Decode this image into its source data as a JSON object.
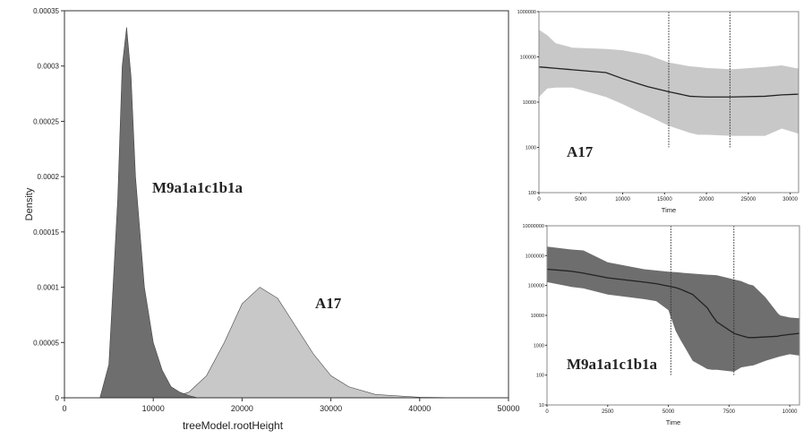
{
  "chart_data": [
    {
      "type": "area",
      "id": "main",
      "xlabel": "treeModel.rootHeight",
      "ylabel": "Density",
      "xlim": [
        0,
        50000
      ],
      "ylim": [
        0,
        0.00035
      ],
      "xticks": [
        "0",
        "10000",
        "20000",
        "30000",
        "40000",
        "50000"
      ],
      "yticks": [
        "0",
        "0.00005",
        "0.0001",
        "0.00015",
        "0.0002",
        "0.00025",
        "0.0003",
        "0.00035"
      ],
      "series": [
        {
          "name": "A17",
          "color": "#c8c8c8",
          "x": [
            12000,
            14000,
            16000,
            18000,
            20000,
            22000,
            24000,
            26000,
            28000,
            30000,
            32000,
            35000,
            40000,
            45000
          ],
          "y": [
            0,
            5e-06,
            2e-05,
            5e-05,
            8.5e-05,
            0.0001,
            9e-05,
            6.5e-05,
            4e-05,
            2e-05,
            1e-05,
            3e-06,
            5e-07,
            0
          ]
        },
        {
          "name": "M9a1a1c1b1a",
          "color": "#6e6e6e",
          "x": [
            4000,
            5000,
            6000,
            6500,
            7000,
            7500,
            8000,
            9000,
            10000,
            11000,
            12000,
            13000,
            14000,
            15000
          ],
          "y": [
            0,
            3e-05,
            0.00018,
            0.0003,
            0.000335,
            0.00029,
            0.0002,
            0.0001,
            5e-05,
            2.5e-05,
            1e-05,
            5e-06,
            2e-06,
            0
          ]
        }
      ]
    },
    {
      "type": "area",
      "id": "a17",
      "title": "A17",
      "xlabel": "Time",
      "scale": "log",
      "xlim": [
        0,
        31000
      ],
      "ylim": [
        100,
        1000000
      ],
      "color": "#c8c8c8",
      "xticks": [
        "0",
        "5000",
        "10000",
        "15000",
        "20000",
        "25000",
        "30000"
      ],
      "yticks": [
        "100",
        "1000",
        "10000",
        "100000",
        "1000000"
      ],
      "vlines": [
        15500,
        22800
      ],
      "vline_from": 1000,
      "x": [
        0,
        1000,
        2000,
        4000,
        8000,
        10000,
        12000,
        13000,
        15500,
        18000,
        19000,
        20000,
        23000,
        27000,
        29000,
        31000
      ],
      "median": [
        60000,
        58000,
        56000,
        52000,
        45000,
        33000,
        25000,
        22000,
        17000,
        13500,
        13200,
        13000,
        13000,
        13500,
        14500,
        15000
      ],
      "upper": [
        400000,
        300000,
        200000,
        160000,
        150000,
        140000,
        120000,
        110000,
        75000,
        62000,
        60000,
        57000,
        53000,
        60000,
        65000,
        55000
      ],
      "lower": [
        13000,
        20000,
        21000,
        21000,
        13000,
        9000,
        6000,
        5000,
        3000,
        2100,
        1900,
        1900,
        1800,
        1800,
        2600,
        2000
      ]
    },
    {
      "type": "area",
      "id": "m9",
      "title": "M9a1a1c1b1a",
      "xlabel": "Time",
      "scale": "log",
      "xlim": [
        0,
        10400
      ],
      "ylim": [
        10,
        10000000
      ],
      "color": "#6e6e6e",
      "xticks": [
        "0",
        "2500",
        "5000",
        "7500",
        "10000"
      ],
      "yticks": [
        "10",
        "100",
        "1000",
        "10000",
        "100000",
        "1000000",
        "10000000"
      ],
      "vlines": [
        5100,
        7700
      ],
      "vline_from": 100,
      "x": [
        0,
        1000,
        1500,
        2500,
        4000,
        4500,
        5000,
        5300,
        5500,
        6000,
        6600,
        6800,
        7000,
        7700,
        8000,
        8300,
        8500,
        9000,
        9500,
        9600,
        10000,
        10400
      ],
      "median": [
        350000,
        300000,
        260000,
        180000,
        130000,
        115000,
        95000,
        85000,
        75000,
        50000,
        18000,
        10000,
        6000,
        2500,
        2100,
        1800,
        1800,
        1900,
        2000,
        2100,
        2300,
        2500
      ],
      "upper": [
        2000000,
        1600000,
        1500000,
        600000,
        350000,
        320000,
        290000,
        280000,
        270000,
        250000,
        230000,
        225000,
        220000,
        160000,
        140000,
        110000,
        100000,
        40000,
        12000,
        10000,
        8500,
        8000
      ],
      "lower": [
        130000,
        90000,
        80000,
        50000,
        35000,
        30000,
        15000,
        3000,
        1500,
        300,
        160,
        150,
        150,
        130,
        180,
        200,
        210,
        300,
        400,
        420,
        500,
        450
      ]
    }
  ]
}
